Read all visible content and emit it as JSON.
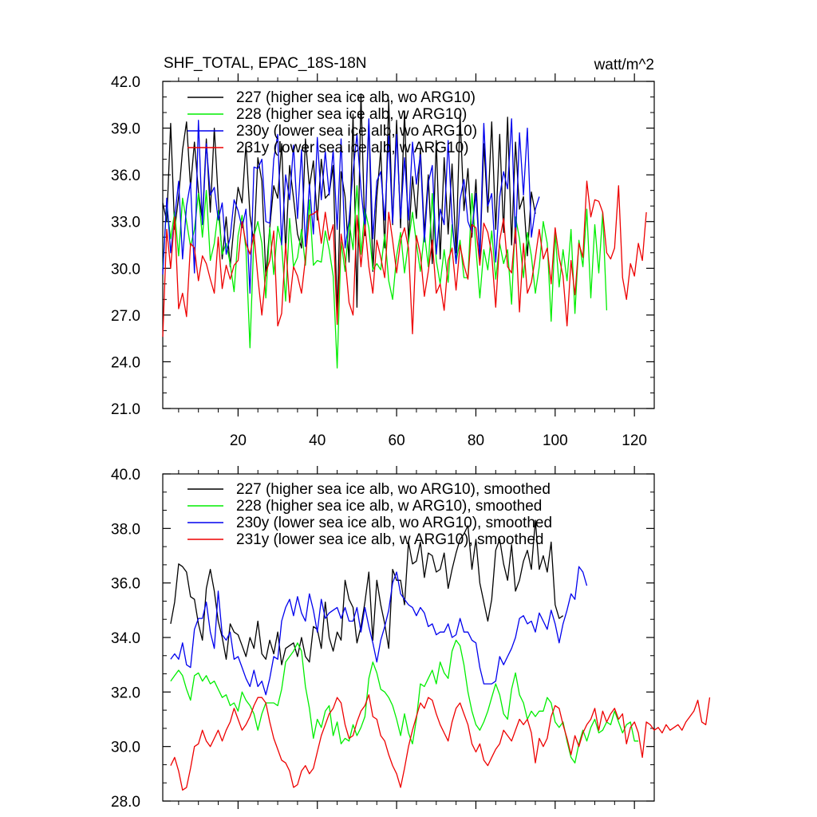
{
  "header": {
    "title": "SHF_TOTAL, EPAC_18S-18N",
    "units": "watt/m^2"
  },
  "colors": {
    "s227": "#000000",
    "s228": "#00ee00",
    "s230": "#0000ee",
    "s231": "#ee0000"
  },
  "chart_data": [
    {
      "type": "line",
      "title": "SHF_TOTAL, EPAC_18S-18N",
      "xlabel": "",
      "ylabel": "watt/m^2",
      "xlim": [
        1,
        125
      ],
      "ylim": [
        21.0,
        42.0
      ],
      "x_ticks": [
        20,
        40,
        60,
        80,
        100,
        120
      ],
      "x_tick_labels": [
        "20",
        "40",
        "60",
        "80",
        "100",
        "120"
      ],
      "y_ticks": [
        21,
        24,
        27,
        30,
        33,
        36,
        39,
        42
      ],
      "y_tick_labels": [
        "21.0",
        "24.0",
        "27.0",
        "30.0",
        "33.0",
        "36.0",
        "39.0",
        "42.0"
      ],
      "legend_position": "top-left",
      "series": [
        {
          "name": "227 (higher sea ice alb, wo ARG10)",
          "color": "#000000",
          "x_start": 1,
          "values": [
            34.2,
            33.0,
            39.3,
            32.5,
            34.6,
            37.6,
            39.4,
            35.2,
            38.1,
            34.9,
            33.1,
            38.3,
            33.6,
            39.0,
            34.5,
            30.6,
            33.3,
            30.1,
            32.8,
            35.2,
            34.2,
            38.0,
            33.4,
            31.6,
            37.1,
            35.6,
            29.5,
            32.6,
            35.3,
            34.5,
            38.0,
            31.1,
            36.6,
            34.5,
            32.2,
            31.3,
            38.3,
            35.2,
            36.9,
            33.1,
            37.0,
            34.5,
            34.8,
            36.6,
            27.0,
            36.2,
            34.6,
            30.4,
            39.9,
            27.5,
            41.2,
            32.1,
            39.5,
            29.8,
            34.6,
            37.6,
            31.3,
            40.8,
            32.8,
            39.5,
            32.6,
            40.1,
            31.7,
            35.9,
            33.2,
            37.7,
            32.2,
            36.0,
            30.3,
            38.2,
            30.6,
            37.1,
            32.2,
            36.7,
            31.0,
            39.9,
            33.7,
            36.4,
            32.0,
            35.7,
            30.4,
            38.0,
            33.6,
            39.4,
            32.5,
            38.6,
            32.3,
            39.7,
            31.5,
            38.1,
            33.8,
            34.6,
            30.8,
            34.9,
            33.5
          ]
        },
        {
          "name": "228 (higher sea ice alb, w ARG10)",
          "color": "#00ee00",
          "x_start": 1,
          "values": [
            30.0,
            34.1,
            31.9,
            33.6,
            30.8,
            34.5,
            33.0,
            31.4,
            32.5,
            34.8,
            32.0,
            35.0,
            30.5,
            31.6,
            33.7,
            30.9,
            31.6,
            30.3,
            28.5,
            32.1,
            33.4,
            31.2,
            24.9,
            32.1,
            33.0,
            31.6,
            28.1,
            32.6,
            29.6,
            32.7,
            31.5,
            27.9,
            33.2,
            30.1,
            30.7,
            32.5,
            30.2,
            34.4,
            30.2,
            30.5,
            30.4,
            32.4,
            31.2,
            29.5,
            23.6,
            31.7,
            29.8,
            33.0,
            31.2,
            35.3,
            30.9,
            33.8,
            32.6,
            29.9,
            30.3,
            29.9,
            32.2,
            29.2,
            28.0,
            30.8,
            32.3,
            29.7,
            31.7,
            33.6,
            31.6,
            29.8,
            32.3,
            30.1,
            34.8,
            30.5,
            29.0,
            31.2,
            29.1,
            32.8,
            30.4,
            31.8,
            29.4,
            29.4,
            34.8,
            31.3,
            28.1,
            31.2,
            29.9,
            32.4,
            29.3,
            31.6,
            30.3,
            31.2,
            27.7,
            33.3,
            31.9,
            29.4,
            32.3,
            30.8,
            28.4,
            30.1,
            33.0,
            31.6,
            26.6,
            32.3,
            28.8,
            31.2,
            29.2,
            32.5,
            27.1,
            31.8,
            30.1,
            33.8,
            28.1,
            32.8,
            29.7,
            33.6,
            27.3
          ]
        },
        {
          "name": "230y (lower sea ice alb, wo ARG10)",
          "color": "#0000ee",
          "x_start": 1,
          "values": [
            29.6,
            34.5,
            31.0,
            33.2,
            35.6,
            30.6,
            34.0,
            35.5,
            29.7,
            39.5,
            32.8,
            38.0,
            34.7,
            35.2,
            33.1,
            34.2,
            30.9,
            32.0,
            34.4,
            33.7,
            32.6,
            33.8,
            28.4,
            36.5,
            36.4,
            37.0,
            33.0,
            32.9,
            37.0,
            38.6,
            31.5,
            36.0,
            34.4,
            37.9,
            33.2,
            37.6,
            31.4,
            35.4,
            32.2,
            38.4,
            34.4,
            37.5,
            34.7,
            37.6,
            32.5,
            38.3,
            31.3,
            33.1,
            36.2,
            38.6,
            35.1,
            32.6,
            39.6,
            31.9,
            35.6,
            36.2,
            33.1,
            38.5,
            32.9,
            38.6,
            33.2,
            37.1,
            33.1,
            38.1,
            35.4,
            37.3,
            31.7,
            35.5,
            36.6,
            30.9,
            33.8,
            32.8,
            38.2,
            33.1,
            30.3,
            34.4,
            35.7,
            33.0,
            32.3,
            34.8,
            30.7,
            39.3,
            34.0,
            34.8,
            30.4,
            34.6,
            36.2,
            35.1,
            39.6,
            31.6,
            38.7,
            34.7,
            39.0,
            32.0,
            33.8,
            34.6
          ]
        },
        {
          "name": "231y (lower sea ice alb, w ARG10)",
          "color": "#ee0000",
          "x_start": 1,
          "values": [
            25.6,
            32.5,
            30.0,
            33.3,
            27.4,
            28.4,
            26.9,
            31.6,
            31.3,
            29.2,
            30.8,
            30.3,
            29.3,
            28.4,
            32.0,
            28.7,
            30.2,
            29.3,
            30.2,
            30.5,
            33.0,
            31.6,
            30.9,
            32.2,
            29.4,
            27.0,
            29.7,
            30.5,
            32.4,
            26.3,
            27.1,
            31.6,
            27.8,
            30.1,
            29.5,
            28.4,
            30.6,
            33.4,
            33.5,
            33.7,
            31.6,
            33.6,
            31.8,
            32.8,
            26.4,
            32.2,
            30.6,
            27.8,
            27.0,
            33.4,
            30.1,
            32.8,
            30.1,
            28.4,
            31.8,
            30.7,
            29.4,
            33.6,
            31.8,
            29.7,
            31.8,
            32.6,
            31.3,
            25.8,
            32.1,
            30.9,
            28.2,
            29.8,
            31.8,
            28.4,
            29.0,
            27.3,
            30.5,
            31.3,
            28.6,
            31.5,
            30.2,
            29.3,
            32.8,
            32.6,
            30.2,
            32.9,
            32.3,
            30.9,
            27.5,
            31.8,
            33.2,
            30.1,
            29.7,
            32.6,
            27.2,
            31.6,
            28.4,
            29.1,
            30.7,
            32.5,
            30.6,
            31.3,
            29.0,
            32.6,
            30.7,
            29.5,
            26.3,
            30.5,
            28.3,
            31.6,
            30.7,
            35.6,
            33.3,
            34.4,
            34.3,
            33.6,
            31.0,
            30.6,
            31.3,
            35.3,
            29.4,
            28.0,
            30.3,
            29.5,
            31.6,
            30.5,
            33.6
          ]
        }
      ]
    },
    {
      "type": "line",
      "title": "",
      "xlabel": "",
      "ylabel": "",
      "xlim": [
        1,
        125
      ],
      "ylim": [
        28.0,
        40.0
      ],
      "x_ticks": [
        20,
        40,
        60,
        80,
        100,
        120
      ],
      "x_tick_labels": [],
      "y_ticks": [
        28,
        30,
        32,
        34,
        36,
        38,
        40
      ],
      "y_tick_labels": [
        "28.0",
        "30.0",
        "32.0",
        "34.0",
        "36.0",
        "38.0",
        "40.0"
      ],
      "legend_position": "top-left",
      "series": [
        {
          "name": "227 (higher sea ice alb, wo ARG10), smoothed",
          "color": "#000000",
          "x_start": 3,
          "values": [
            34.5,
            35.3,
            36.7,
            36.6,
            36.4,
            35.5,
            35.4,
            34.5,
            33.9,
            35.8,
            36.5,
            35.7,
            34.6,
            34.0,
            33.2,
            34.5,
            34.2,
            34.1,
            33.7,
            33.3,
            34.0,
            33.6,
            34.6,
            33.4,
            33.2,
            33.9,
            33.4,
            34.2,
            33.0,
            33.6,
            33.7,
            33.8,
            33.3,
            34.0,
            33.3,
            33.1,
            34.4,
            34.3,
            33.6,
            35.3,
            34.0,
            33.5,
            34.2,
            33.9,
            36.1,
            35.4,
            35.1,
            33.8,
            34.4,
            35.3,
            36.4,
            33.9,
            36.1,
            35.2,
            34.5,
            33.6,
            36.5,
            36.1,
            36.1,
            35.2,
            37.5,
            36.7,
            36.8,
            37.5,
            36.2,
            37.1,
            37.0,
            36.4,
            36.5,
            37.1,
            35.8,
            36.5,
            37.1,
            37.6,
            37.8,
            38.1,
            36.5,
            37.6,
            36.0,
            35.3,
            34.6,
            35.4,
            37.2,
            37.6,
            36.7,
            36.1,
            37.4,
            35.7,
            36.1,
            36.8,
            37.2,
            36.5,
            38.3,
            36.5,
            37.0,
            36.4,
            37.5,
            35.2,
            34.7,
            34.8
          ]
        },
        {
          "name": "228 (higher sea ice alb, w ARG10), smoothed",
          "color": "#00ee00",
          "x_start": 3,
          "values": [
            32.4,
            32.6,
            32.8,
            32.6,
            32.1,
            31.7,
            32.6,
            32.7,
            32.4,
            32.6,
            32.3,
            32.4,
            32.1,
            31.8,
            31.9,
            31.5,
            31.6,
            31.3,
            32.0,
            31.7,
            31.5,
            31.2,
            30.6,
            31.2,
            31.6,
            31.6,
            31.6,
            31.5,
            32.1,
            33.1,
            33.3,
            33.5,
            33.8,
            33.5,
            32.2,
            31.4,
            30.3,
            31.0,
            30.7,
            31.3,
            31.5,
            30.4,
            30.9,
            30.1,
            30.3,
            30.2,
            30.8,
            30.4,
            30.7,
            31.1,
            32.5,
            33.1,
            32.7,
            32.1,
            32.0,
            31.8,
            31.5,
            31.0,
            30.4,
            31.2,
            30.5,
            30.1,
            31.0,
            32.3,
            32.2,
            32.5,
            32.8,
            32.3,
            33.1,
            32.7,
            32.5,
            33.5,
            33.9,
            33.7,
            33.0,
            32.0,
            31.3,
            30.8,
            30.6,
            30.9,
            31.3,
            31.8,
            32.3,
            31.9,
            31.2,
            31.0,
            32.1,
            32.7,
            31.9,
            31.6,
            31.0,
            31.3,
            31.1,
            31.3,
            31.3,
            31.8,
            31.6,
            30.9,
            30.7,
            30.9,
            30.2,
            29.6,
            29.4,
            30.1,
            30.6,
            30.2,
            30.7,
            31.0,
            30.5,
            30.6,
            30.9,
            30.8,
            31.3,
            30.9,
            30.5,
            30.8,
            30.9,
            30.2,
            30.2
          ]
        },
        {
          "name": "230y (lower sea ice alb, wo ARG10), smoothed",
          "color": "#0000ee",
          "x_start": 3,
          "values": [
            33.2,
            33.4,
            33.2,
            33.8,
            33.0,
            32.9,
            34.3,
            34.7,
            34.7,
            35.3,
            34.2,
            33.6,
            35.7,
            34.1,
            33.9,
            34.2,
            33.2,
            33.3,
            32.9,
            32.5,
            32.2,
            32.8,
            32.2,
            32.4,
            31.9,
            32.5,
            33.3,
            33.2,
            34.6,
            35.1,
            35.4,
            34.8,
            35.5,
            34.9,
            34.6,
            35.6,
            35.0,
            34.2,
            35.4,
            34.7,
            34.9,
            35.0,
            35.1,
            34.7,
            35.1,
            34.6,
            34.6,
            35.1,
            34.2,
            35.1,
            34.4,
            33.8,
            33.1,
            33.9,
            34.4,
            35.0,
            36.0,
            36.4,
            35.6,
            35.4,
            35.2,
            35.1,
            34.8,
            35.1,
            34.9,
            34.4,
            34.5,
            34.1,
            34.2,
            34.2,
            34.5,
            34.0,
            34.1,
            34.7,
            34.2,
            34.2,
            33.9,
            33.8,
            32.9,
            32.3,
            32.3,
            32.3,
            32.4,
            33.3,
            33.0,
            33.3,
            33.6,
            34.0,
            34.7,
            34.8,
            34.5,
            34.6,
            34.2,
            34.9,
            34.6,
            34.3,
            35.0,
            34.5,
            33.8,
            34.5,
            35.0,
            35.6,
            35.4,
            36.6,
            36.4,
            35.9
          ]
        },
        {
          "name": "231y (lower sea ice alb, w ARG10), smoothed",
          "color": "#ee0000",
          "x_start": 3,
          "values": [
            29.3,
            29.6,
            29.1,
            28.4,
            28.5,
            29.2,
            30.0,
            30.1,
            30.6,
            30.2,
            30.0,
            30.3,
            30.6,
            30.2,
            30.6,
            30.9,
            31.4,
            31.0,
            30.6,
            30.8,
            31.1,
            31.5,
            31.8,
            31.8,
            31.6,
            30.9,
            30.3,
            29.9,
            29.5,
            29.4,
            29.1,
            28.5,
            28.6,
            29.1,
            29.3,
            29.0,
            29.2,
            29.8,
            30.4,
            30.8,
            31.2,
            31.4,
            31.8,
            31.6,
            30.8,
            30.3,
            30.4,
            30.9,
            31.3,
            31.5,
            31.9,
            31.1,
            31.0,
            30.4,
            30.2,
            29.7,
            29.3,
            29.0,
            28.5,
            29.2,
            30.0,
            30.6,
            31.1,
            31.6,
            31.4,
            31.8,
            31.7,
            31.2,
            30.8,
            30.5,
            30.2,
            30.9,
            31.4,
            31.6,
            31.2,
            30.8,
            30.1,
            29.8,
            30.1,
            29.5,
            29.3,
            29.6,
            29.9,
            30.1,
            30.6,
            30.4,
            30.2,
            30.6,
            31.0,
            30.8,
            31.0,
            30.5,
            29.4,
            30.3,
            30.0,
            30.3,
            31.1,
            31.5,
            31.4,
            30.8,
            30.3,
            29.7,
            30.4,
            30.0,
            30.5,
            30.8,
            31.0,
            31.4,
            30.6,
            31.3,
            30.9,
            31.2,
            31.4,
            31.0,
            31.2,
            30.1,
            30.7,
            30.9,
            30.5,
            29.6,
            30.9,
            30.8,
            30.6,
            30.7,
            30.5,
            30.8,
            30.6,
            30.7,
            30.8,
            30.6,
            30.9,
            31.1,
            31.3,
            31.7,
            30.9,
            30.8,
            31.8
          ]
        }
      ]
    }
  ]
}
